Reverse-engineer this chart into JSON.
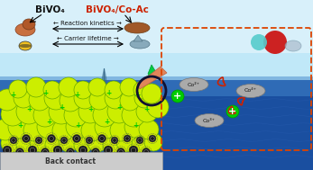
{
  "title_left": "BiVO₄",
  "title_right": "BiVO₄/Co-Ac",
  "label1": "← Reaction kinetics →",
  "label2": "← Carrier lifetime →",
  "back_contact": "Back contact",
  "co_labels": [
    "Co²⁺",
    "Co⁴⁺",
    "Co³⁺"
  ],
  "sky_color": "#b8e4f0",
  "sea_color_deep": "#1a4fa0",
  "sea_color_mid": "#2a6abf",
  "nano_yellow": "#ccee00",
  "nano_edge": "#66aa00",
  "back_contact_color": "#cccccc",
  "co_ellipse_color": "#999999",
  "green_plus_color": "#00cc00",
  "dashed_box_color": "#dd4400",
  "title_left_color": "#111111",
  "title_right_color": "#cc2200",
  "label_color": "#111111",
  "fig_width": 3.47,
  "fig_height": 1.89,
  "dpi": 100
}
